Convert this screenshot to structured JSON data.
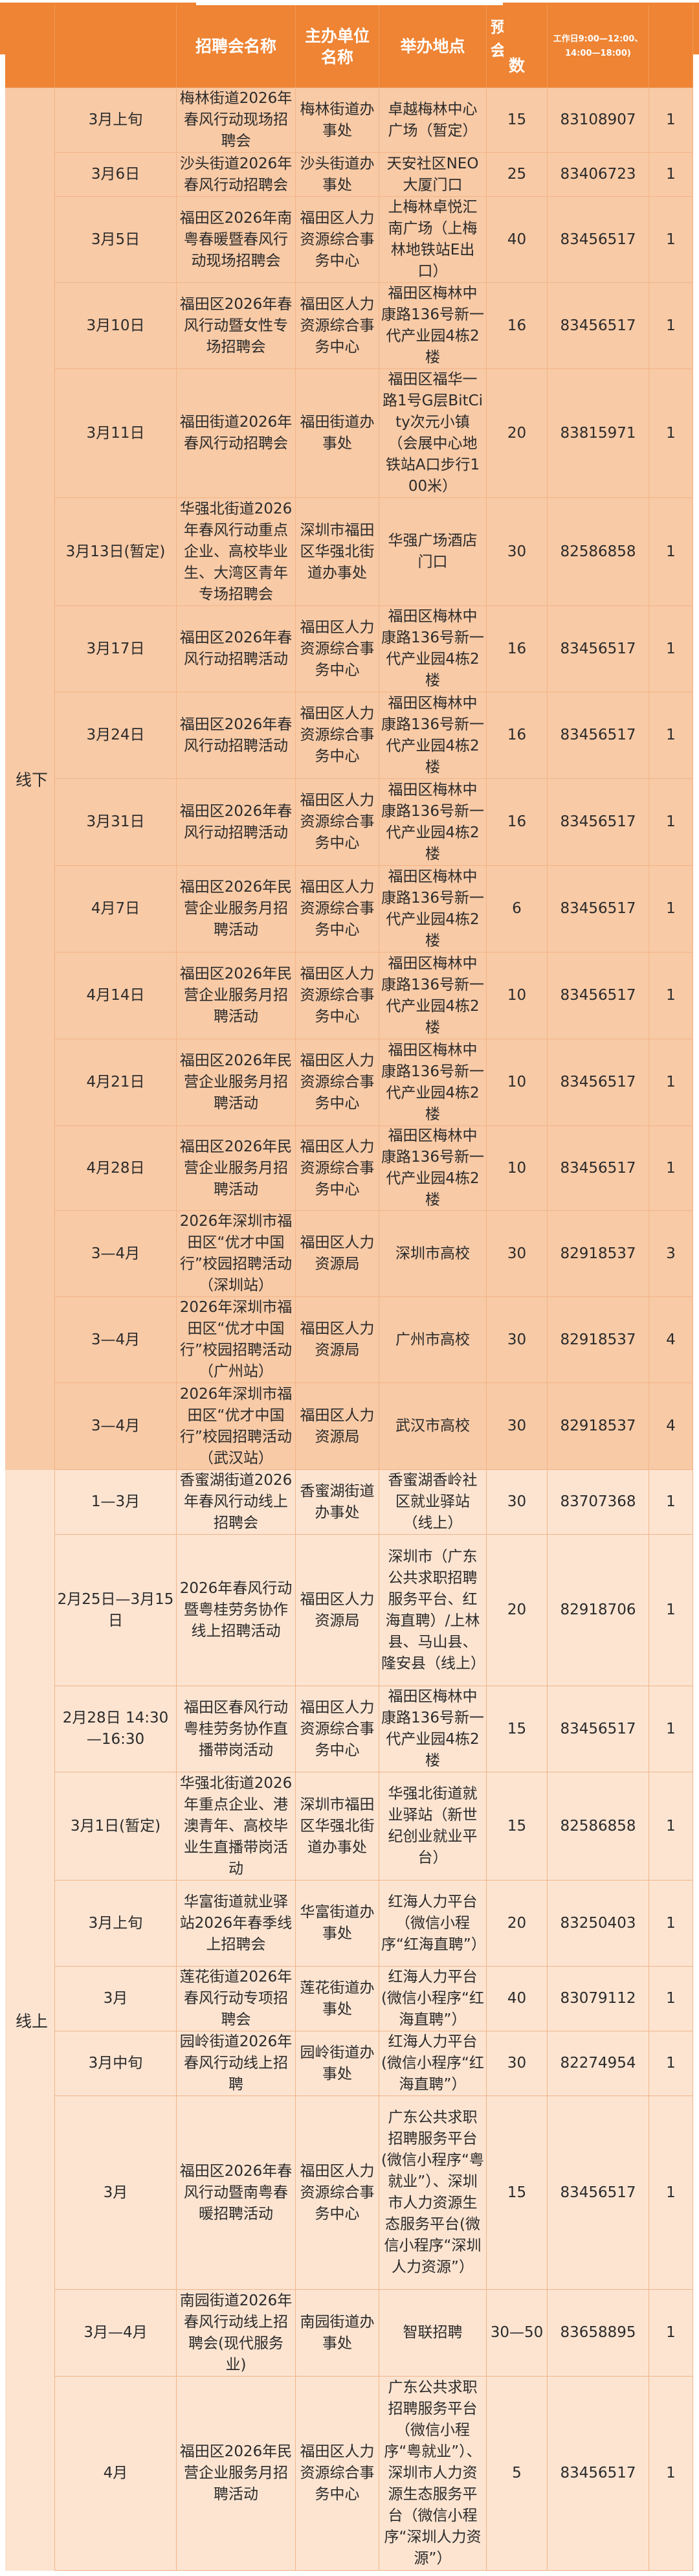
{
  "header": {
    "columns": [
      "",
      "",
      "招聘会名称",
      "主办单位名称",
      "举办地点",
      "数",
      "工作日9:00—12:00、14:00—18:00)",
      ""
    ],
    "count_fragment": "预会"
  },
  "colors": {
    "header": "#ee8434",
    "offline_row": "#f8caa6",
    "online_row": "#fce4d1"
  },
  "offline": {
    "category": "线下",
    "rows": [
      [
        "3月上旬",
        "梅林街道2026年春风行动现场招聘会",
        "梅林街道办事处",
        "卓越梅林中心广场（暂定）",
        "15",
        "83108907",
        "1"
      ],
      [
        "3月6日",
        "沙头街道2026年春风行动招聘会",
        "沙头街道办事处",
        "天安社区NEO大厦门口",
        "25",
        "83406723",
        "1"
      ],
      [
        "3月5日",
        "福田区2026年南粤春暖暨春风行动现场招聘会",
        "福田区人力资源综合事务中心",
        "上梅林卓悦汇南广场（上梅林地铁站E出口）",
        "40",
        "83456517",
        "1"
      ],
      [
        "3月10日",
        "福田区2026年春风行动暨女性专场招聘会",
        "福田区人力资源综合事务中心",
        "福田区梅林中康路136号新一代产业园4栋2楼",
        "16",
        "83456517",
        "1"
      ],
      [
        "3月11日",
        "福田街道2026年春风行动招聘会",
        "福田街道办事处",
        "福田区福华一路1号G层BitCity次元小镇（会展中心地铁站A口步行100米）",
        "20",
        "83815971",
        "1"
      ],
      [
        "3月13日(暂定)",
        "华强北街道2026年春风行动重点企业、高校毕业生、大湾区青年专场招聘会",
        "深圳市福田区华强北街道办事处",
        "华强广场酒店门口",
        "30",
        "82586858",
        "1"
      ],
      [
        "3月17日",
        "福田区2026年春风行动招聘活动",
        "福田区人力资源综合事务中心",
        "福田区梅林中康路136号新一代产业园4栋2楼",
        "16",
        "83456517",
        "1"
      ],
      [
        "3月24日",
        "福田区2026年春风行动招聘活动",
        "福田区人力资源综合事务中心",
        "福田区梅林中康路136号新一代产业园4栋2楼",
        "16",
        "83456517",
        "1"
      ],
      [
        "3月31日",
        "福田区2026年春风行动招聘活动",
        "福田区人力资源综合事务中心",
        "福田区梅林中康路136号新一代产业园4栋2楼",
        "16",
        "83456517",
        "1"
      ],
      [
        "4月7日",
        "福田区2026年民营企业服务月招聘活动",
        "福田区人力资源综合事务中心",
        "福田区梅林中康路136号新一代产业园4栋2楼",
        "6",
        "83456517",
        "1"
      ],
      [
        "4月14日",
        "福田区2026年民营企业服务月招聘活动",
        "福田区人力资源综合事务中心",
        "福田区梅林中康路136号新一代产业园4栋2楼",
        "10",
        "83456517",
        "1"
      ],
      [
        "4月21日",
        "福田区2026年民营企业服务月招聘活动",
        "福田区人力资源综合事务中心",
        "福田区梅林中康路136号新一代产业园4栋2楼",
        "10",
        "83456517",
        "1"
      ],
      [
        "4月28日",
        "福田区2026年民营企业服务月招聘活动",
        "福田区人力资源综合事务中心",
        "福田区梅林中康路136号新一代产业园4栋2楼",
        "10",
        "83456517",
        "1"
      ],
      [
        "3—4月",
        "2026年深圳市福田区“优才中国行”校园招聘活动（深圳站）",
        "福田区人力资源局",
        "深圳市高校",
        "30",
        "82918537",
        "3"
      ],
      [
        "3—4月",
        "2026年深圳市福田区“优才中国行”校园招聘活动（广州站）",
        "福田区人力资源局",
        "广州市高校",
        "30",
        "82918537",
        "4"
      ],
      [
        "3—4月",
        "2026年深圳市福田区“优才中国行”校园招聘活动（武汉站）",
        "福田区人力资源局",
        "武汉市高校",
        "30",
        "82918537",
        "4"
      ]
    ]
  },
  "online": {
    "category": "线上",
    "rows": [
      [
        "1—3月",
        "香蜜湖街道2026年春风行动线上招聘会",
        "香蜜湖街道办事处",
        "香蜜湖香岭社区就业驿站（线上）",
        "30",
        "83707368",
        "1"
      ],
      [
        "2月25日—3月15日",
        "2026年春风行动暨粤桂劳务协作线上招聘活动",
        "福田区人力资源局",
        "深圳市（广东公共求职招聘服务平台、红海直聘）/上林县、马山县、隆安县（线上）",
        "20",
        "82918706",
        "1"
      ],
      [
        "2月28日 14:30—16:30",
        "福田区春风行动粤桂劳务协作直播带岗活动",
        "福田区人力资源综合事务中心",
        "福田区梅林中康路136号新一代产业园4栋2楼",
        "15",
        "83456517",
        "1"
      ],
      [
        "3月1日(暂定)",
        "华强北街道2026年重点企业、港澳青年、高校毕业生直播带岗活动",
        "深圳市福田区华强北街道办事处",
        "华强北街道就业驿站（新世纪创业就业平台）",
        "15",
        "82586858",
        "1"
      ],
      [
        "3月上旬",
        "华富街道就业驿站2026年春季线上招聘会",
        "华富街道办事处",
        "红海人力平台（微信小程序“红海直聘”）",
        "20",
        "83250403",
        "1"
      ],
      [
        "3月",
        "莲花街道2026年春风行动专项招聘会",
        "莲花街道办事处",
        "红海人力平台(微信小程序“红海直聘”）",
        "40",
        "83079112",
        "1"
      ],
      [
        "3月中旬",
        "园岭街道2026年春风行动线上招聘",
        "园岭街道办事处",
        "红海人力平台(微信小程序“红海直聘”）",
        "30",
        "82274954",
        "1"
      ],
      [
        "3月",
        "福田区2026年春风行动暨南粤春暖招聘活动",
        "福田区人力资源综合事务中心",
        "广东公共求职招聘服务平台(微信小程序“粤就业”）、深圳市人力资源生态服务平台(微信小程序“深圳人力资源”）",
        "15",
        "83456517",
        "1"
      ],
      [
        "3月—4月",
        "南园街道2026年春风行动线上招聘会(现代服务业)",
        "南园街道办事处",
        "智联招聘",
        "30—50",
        "83658895",
        "1"
      ],
      [
        "4月",
        "福田区2026年民营企业服务月招聘活动",
        "福田区人力资源综合事务中心",
        "广东公共求职招聘服务平台（微信小程序“粤就业”）、深圳市人力资源生态服务平台（微信小程序“深圳人力资源”）",
        "5",
        "83456517",
        "1"
      ]
    ]
  }
}
